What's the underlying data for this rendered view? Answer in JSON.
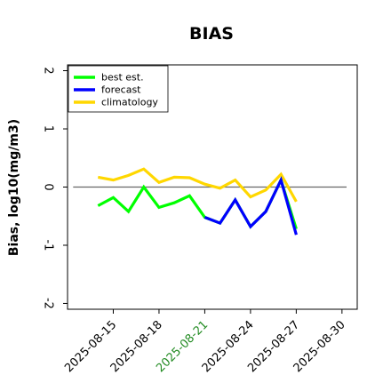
{
  "chart_data": {
    "type": "line",
    "title": "BIAS",
    "xlabel": "",
    "ylabel": "Bias, log10(mg/m3)",
    "ylim": [
      -2.1,
      2.1
    ],
    "yticks": [
      2,
      1,
      0,
      -1,
      -2
    ],
    "xlim": [
      "2025-08-12",
      "2025-08-31"
    ],
    "xticks": [
      "2025-08-15",
      "2025-08-18",
      "2025-08-21",
      "2025-08-24",
      "2025-08-27",
      "2025-08-30"
    ],
    "xtick_colors": [
      "#000000",
      "#000000",
      "#228B22",
      "#000000",
      "#000000",
      "#000000"
    ],
    "reference_line": 0,
    "grid": false,
    "legend_position": "top-left",
    "series": [
      {
        "name": "best est.",
        "color": "#00ff00",
        "x": [
          "2025-08-14",
          "2025-08-15",
          "2025-08-16",
          "2025-08-17",
          "2025-08-18",
          "2025-08-19",
          "2025-08-20",
          "2025-08-21",
          "2025-08-22",
          "2025-08-23",
          "2025-08-24",
          "2025-08-25",
          "2025-08-26",
          "2025-08-27"
        ],
        "values": [
          -0.32,
          -0.18,
          -0.42,
          0.0,
          -0.35,
          -0.27,
          -0.15,
          -0.52,
          -0.62,
          -0.22,
          -0.68,
          -0.42,
          0.12,
          -0.72
        ]
      },
      {
        "name": "forecast",
        "color": "#0000ff",
        "x": [
          "2025-08-21",
          "2025-08-22",
          "2025-08-23",
          "2025-08-24",
          "2025-08-25",
          "2025-08-26",
          "2025-08-27"
        ],
        "values": [
          -0.52,
          -0.62,
          -0.22,
          -0.68,
          -0.42,
          0.12,
          -0.82
        ]
      },
      {
        "name": "climatology",
        "color": "#ffd700",
        "x": [
          "2025-08-14",
          "2025-08-15",
          "2025-08-16",
          "2025-08-17",
          "2025-08-18",
          "2025-08-19",
          "2025-08-20",
          "2025-08-21",
          "2025-08-22",
          "2025-08-23",
          "2025-08-24",
          "2025-08-25",
          "2025-08-26",
          "2025-08-27"
        ],
        "values": [
          0.17,
          0.12,
          0.2,
          0.31,
          0.08,
          0.17,
          0.16,
          0.05,
          -0.02,
          0.12,
          -0.17,
          -0.05,
          0.22,
          -0.25
        ]
      }
    ]
  }
}
